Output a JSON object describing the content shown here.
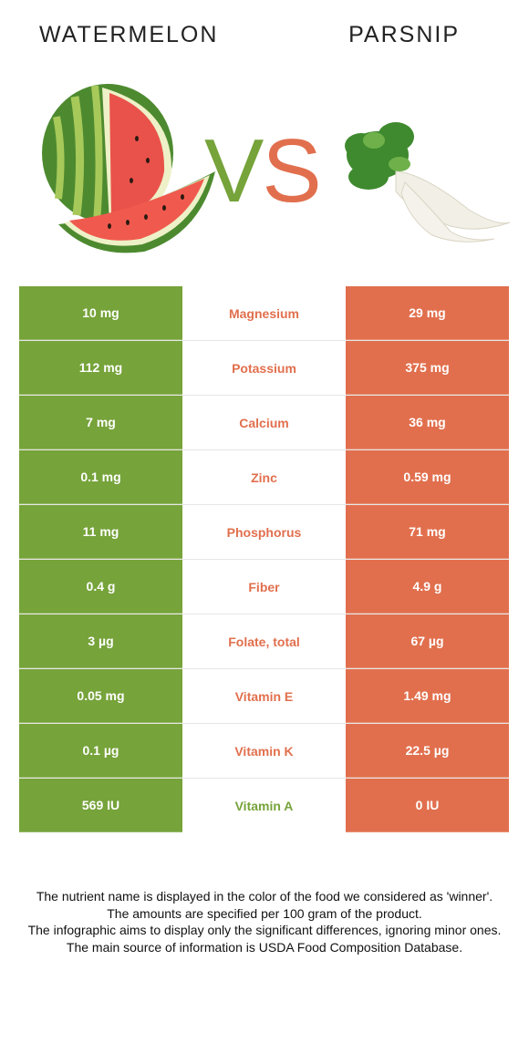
{
  "titles": {
    "left": "WATERMELON",
    "right": "PARSNIP"
  },
  "vs": {
    "v": "V",
    "s": "S"
  },
  "colors": {
    "left_food": "#76a33a",
    "right_food": "#e16f4d"
  },
  "images": {
    "left": "watermelon-image",
    "right": "parsnip-image"
  },
  "rows": [
    {
      "left": "10 mg",
      "nutrient": "Magnesium",
      "right": "29 mg",
      "winner": "right"
    },
    {
      "left": "112 mg",
      "nutrient": "Potassium",
      "right": "375 mg",
      "winner": "right"
    },
    {
      "left": "7 mg",
      "nutrient": "Calcium",
      "right": "36 mg",
      "winner": "right"
    },
    {
      "left": "0.1 mg",
      "nutrient": "Zinc",
      "right": "0.59 mg",
      "winner": "right"
    },
    {
      "left": "11 mg",
      "nutrient": "Phosphorus",
      "right": "71 mg",
      "winner": "right"
    },
    {
      "left": "0.4 g",
      "nutrient": "Fiber",
      "right": "4.9 g",
      "winner": "right"
    },
    {
      "left": "3 µg",
      "nutrient": "Folate, total",
      "right": "67 µg",
      "winner": "right"
    },
    {
      "left": "0.05 mg",
      "nutrient": "Vitamin E",
      "right": "1.49 mg",
      "winner": "right"
    },
    {
      "left": "0.1 µg",
      "nutrient": "Vitamin K",
      "right": "22.5 µg",
      "winner": "right"
    },
    {
      "left": "569 IU",
      "nutrient": "Vitamin A",
      "right": "0 IU",
      "winner": "left"
    }
  ],
  "footer": [
    "The nutrient name is displayed in the color of the food we considered as 'winner'.",
    "The amounts are specified per 100 gram of the product.",
    "The infographic aims to display only the significant differences, ignoring minor ones.",
    "The main source of information is USDA Food Composition Database."
  ]
}
